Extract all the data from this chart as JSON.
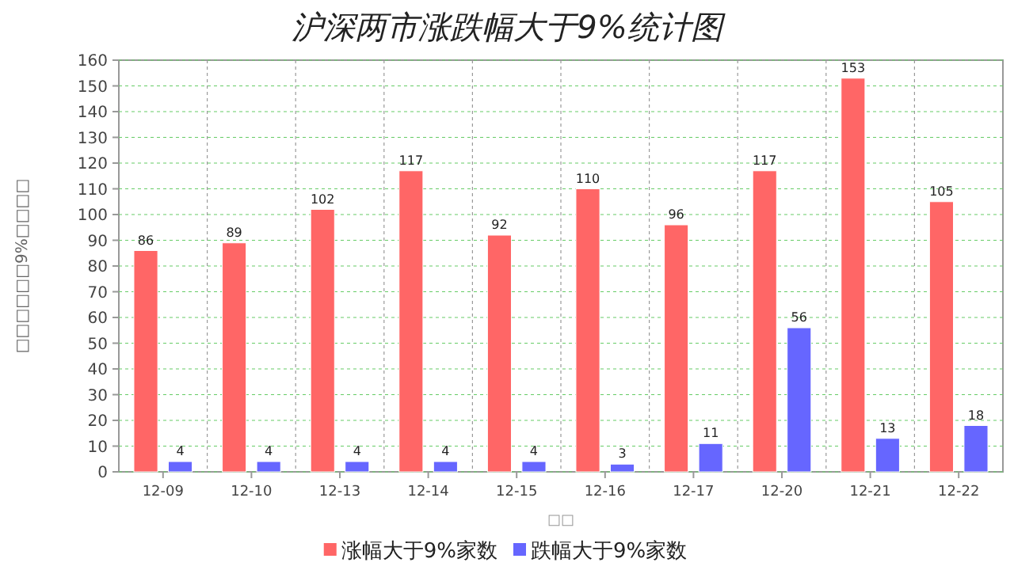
{
  "chart_data": {
    "type": "bar",
    "title": "沪深两市涨跌幅大于9%统计图",
    "xlabel": "□□",
    "ylabel": "□□□□□□9%□□□□",
    "categories": [
      "12-09",
      "12-10",
      "12-13",
      "12-14",
      "12-15",
      "12-16",
      "12-17",
      "12-20",
      "12-21",
      "12-22"
    ],
    "series": [
      {
        "name": "涨幅大于9%家数",
        "color": "#ff6666",
        "values": [
          86,
          89,
          102,
          117,
          92,
          110,
          96,
          117,
          153,
          105
        ]
      },
      {
        "name": "跌幅大于9%家数",
        "color": "#6666ff",
        "values": [
          4,
          4,
          4,
          4,
          4,
          3,
          11,
          56,
          13,
          18
        ]
      }
    ],
    "ylim": [
      0,
      160
    ],
    "yticks": [
      0,
      10,
      20,
      30,
      40,
      50,
      60,
      70,
      80,
      90,
      100,
      110,
      120,
      130,
      140,
      150,
      160
    ],
    "grid": true,
    "legend": "bottom",
    "data_labels": true
  }
}
